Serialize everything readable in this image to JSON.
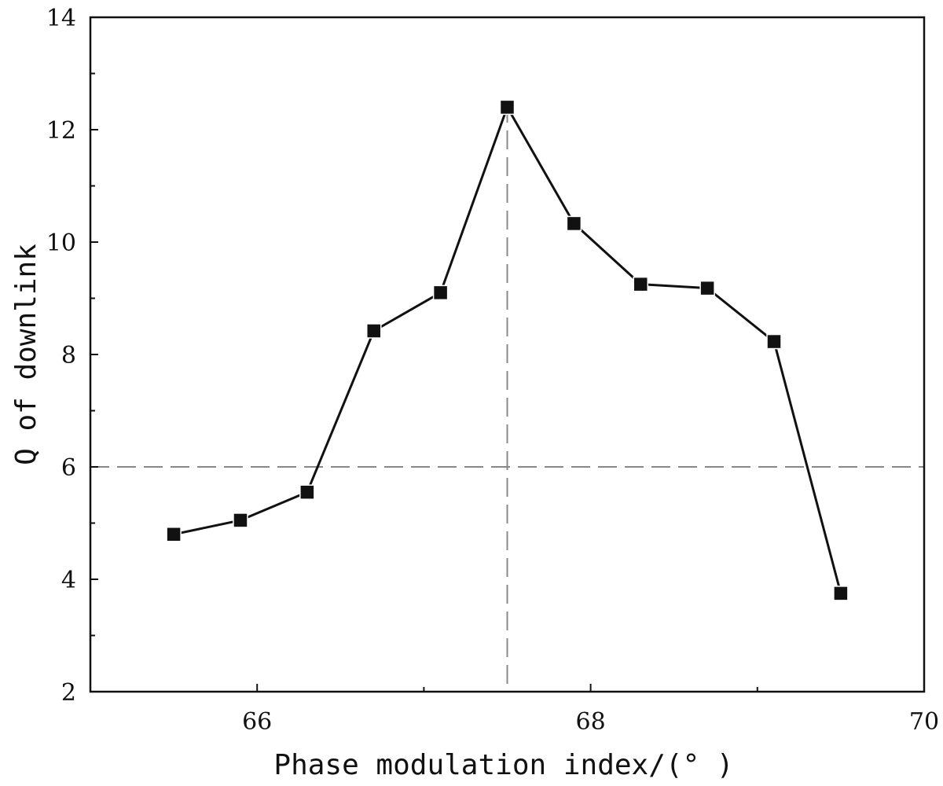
{
  "chart_data": {
    "type": "line",
    "xlabel": "Phase modulation index/(° )",
    "ylabel": "Q of downlink",
    "xlim": [
      65,
      70
    ],
    "ylim": [
      2,
      14
    ],
    "x_ticks_major": [
      66,
      68,
      70
    ],
    "y_ticks_major": [
      2,
      4,
      6,
      8,
      10,
      12,
      14
    ],
    "grid": false,
    "legend": "none",
    "marker": "square",
    "line_color": "#111111",
    "marker_color": "#111111",
    "reference_line_color": "#888888",
    "series": [
      {
        "x": [
          65.5,
          65.9,
          66.3,
          66.7,
          67.1,
          67.5,
          67.9,
          68.3,
          68.7,
          69.1,
          69.5
        ],
        "y": [
          4.8,
          5.05,
          5.55,
          8.42,
          9.1,
          12.4,
          10.33,
          9.25,
          9.18,
          8.23,
          3.75
        ]
      }
    ],
    "reference_lines": [
      {
        "orientation": "horizontal",
        "value": 6,
        "style": "dashed"
      },
      {
        "orientation": "vertical",
        "value": 67.5,
        "style": "dashed"
      }
    ]
  }
}
